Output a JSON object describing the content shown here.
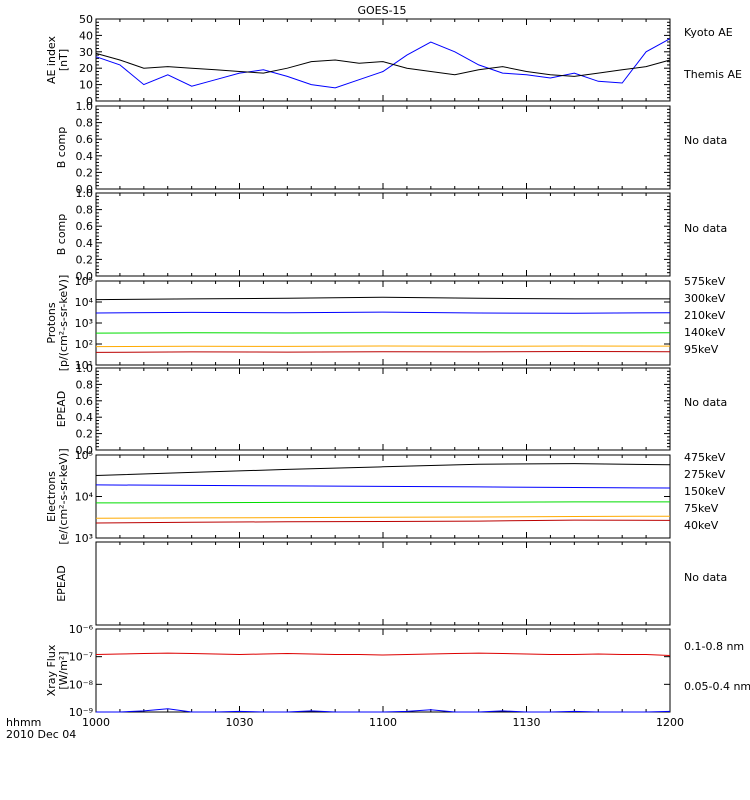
{
  "title": "GOES-15",
  "footer": {
    "units": "hhmm",
    "date": "2010 Dec 04"
  },
  "time_ticks": [
    "1000",
    "1030",
    "1100",
    "1130",
    "1200"
  ],
  "colors": {
    "black": "#000000",
    "blue": "#0000ff",
    "green": "#00dd00",
    "orange": "#ffaa00",
    "darkred": "#bb0000",
    "red": "#dd0000"
  },
  "chart_data": [
    {
      "type": "line",
      "id": "ae",
      "ylabel": [
        "AE index",
        "[nT]"
      ],
      "ylim": [
        0,
        50
      ],
      "yticks": [
        0,
        10,
        20,
        30,
        40,
        50
      ],
      "ytick_labels": [
        "0",
        "10",
        "20",
        "30",
        "40",
        "50"
      ],
      "x": [
        0,
        5,
        10,
        15,
        20,
        25,
        30,
        35,
        40,
        45,
        50,
        55,
        60,
        65,
        70,
        75,
        80,
        85,
        90,
        95,
        100,
        105,
        110,
        115,
        120
      ],
      "series": [
        {
          "name": "Kyoto AE",
          "color": "#0000ff",
          "values": [
            27,
            22,
            10,
            16,
            9,
            13,
            17,
            19,
            15,
            10,
            8,
            13,
            18,
            28,
            36,
            30,
            22,
            17,
            16,
            14,
            17,
            12,
            11,
            30,
            38
          ]
        },
        {
          "name": "Themis AE",
          "color": "#000000",
          "values": [
            29,
            25,
            20,
            21,
            20,
            19,
            18,
            17,
            20,
            24,
            25,
            23,
            24,
            20,
            18,
            16,
            19,
            21,
            18,
            16,
            15,
            17,
            19,
            21,
            25
          ]
        }
      ]
    },
    {
      "type": "empty",
      "id": "b1",
      "ylabel": [
        "B comp"
      ],
      "ylim": [
        0,
        1
      ],
      "yticks": [
        0,
        0.2,
        0.4,
        0.6,
        0.8,
        1.0
      ],
      "ytick_labels": [
        "0.0",
        "0.2",
        "0.4",
        "0.6",
        "0.8",
        "1.0"
      ],
      "note": "No data"
    },
    {
      "type": "empty",
      "id": "b2",
      "ylabel": [
        "B comp"
      ],
      "ylim": [
        0,
        1
      ],
      "yticks": [
        0,
        0.2,
        0.4,
        0.6,
        0.8,
        1.0
      ],
      "ytick_labels": [
        "0.0",
        "0.2",
        "0.4",
        "0.6",
        "0.8",
        "1.0"
      ],
      "note": "No data"
    },
    {
      "type": "line",
      "id": "protons",
      "log": true,
      "ylabel": [
        "Protons",
        "[p/(cm²-s-sr-keV)]"
      ],
      "ylim": [
        10,
        100000
      ],
      "yticks": [
        10,
        100,
        1000,
        10000,
        100000
      ],
      "ytick_labels": [
        "10¹",
        "10²",
        "10³",
        "10⁴",
        "10⁵"
      ],
      "x": [
        0,
        20,
        40,
        60,
        80,
        100,
        120
      ],
      "series": [
        {
          "name": "575keV",
          "color": "#bb0000",
          "values": [
            40,
            42,
            41,
            43,
            42,
            44,
            43
          ]
        },
        {
          "name": "300keV",
          "color": "#ffaa00",
          "values": [
            75,
            78,
            77,
            80,
            78,
            80,
            79
          ]
        },
        {
          "name": "210keV",
          "color": "#00dd00",
          "values": [
            330,
            340,
            335,
            345,
            340,
            338,
            342
          ]
        },
        {
          "name": "140keV",
          "color": "#0000ff",
          "values": [
            3000,
            3200,
            3100,
            3300,
            3000,
            2900,
            3100
          ]
        },
        {
          "name": "95keV",
          "color": "#000000",
          "values": [
            13000,
            14000,
            15000,
            17000,
            15000,
            14000,
            14000
          ]
        }
      ]
    },
    {
      "type": "empty",
      "id": "epead1",
      "ylabel": [
        "EPEAD"
      ],
      "ylim": [
        0,
        1
      ],
      "yticks": [
        0,
        0.2,
        0.4,
        0.6,
        0.8,
        1.0
      ],
      "ytick_labels": [
        "0.0",
        "0.2",
        "0.4",
        "0.6",
        "0.8",
        "1.0"
      ],
      "note": "No data"
    },
    {
      "type": "line",
      "id": "electrons",
      "log": true,
      "ylabel": [
        "Electrons",
        "[e/(cm²-s-sr-keV)]"
      ],
      "ylim": [
        1000,
        100000
      ],
      "yticks": [
        1000,
        10000,
        100000
      ],
      "ytick_labels": [
        "10³",
        "10⁴",
        "10⁵"
      ],
      "x": [
        0,
        20,
        40,
        60,
        80,
        100,
        120
      ],
      "series": [
        {
          "name": "475keV",
          "color": "#bb0000",
          "values": [
            2300,
            2400,
            2450,
            2500,
            2550,
            2700,
            2650
          ]
        },
        {
          "name": "275keV",
          "color": "#ffaa00",
          "values": [
            3000,
            3050,
            3100,
            3150,
            3200,
            3300,
            3350
          ]
        },
        {
          "name": "150keV",
          "color": "#00dd00",
          "values": [
            7000,
            7100,
            7200,
            7200,
            7300,
            7400,
            7400
          ]
        },
        {
          "name": "75keV",
          "color": "#0000ff",
          "values": [
            19000,
            18500,
            18000,
            17500,
            17000,
            16500,
            16000
          ]
        },
        {
          "name": "40keV",
          "color": "#000000",
          "values": [
            32000,
            38000,
            45000,
            52000,
            60000,
            62000,
            58000
          ]
        }
      ]
    },
    {
      "type": "empty",
      "id": "epead2",
      "ylabel": [
        "EPEAD"
      ],
      "ylim": [
        0,
        1
      ],
      "yticks": [],
      "ytick_labels": [],
      "note": "No data"
    },
    {
      "type": "line",
      "id": "xray",
      "log": true,
      "ylabel": [
        "Xray Flux",
        "[W/m²]"
      ],
      "ylim": [
        1e-09,
        1e-06
      ],
      "yticks": [
        1e-09,
        1e-08,
        1e-07,
        1e-06
      ],
      "ytick_labels": [
        "10⁻⁹",
        "10⁻⁸",
        "10⁻⁷",
        "10⁻⁶"
      ],
      "x": [
        0,
        5,
        10,
        15,
        20,
        25,
        30,
        35,
        40,
        45,
        50,
        55,
        60,
        65,
        70,
        75,
        80,
        85,
        90,
        95,
        100,
        105,
        110,
        115,
        120
      ],
      "series": [
        {
          "name": "0.1-0.8 nm",
          "color": "#dd0000",
          "values": [
            1.2e-07,
            1.25e-07,
            1.3e-07,
            1.35e-07,
            1.3e-07,
            1.25e-07,
            1.2e-07,
            1.25e-07,
            1.3e-07,
            1.25e-07,
            1.2e-07,
            1.2e-07,
            1.15e-07,
            1.2e-07,
            1.25e-07,
            1.3e-07,
            1.35e-07,
            1.3e-07,
            1.25e-07,
            1.2e-07,
            1.2e-07,
            1.25e-07,
            1.2e-07,
            1.2e-07,
            1.1e-07
          ]
        },
        {
          "name": "0.05-0.4 nm",
          "color": "#0000ff",
          "values": [
            1e-09,
            1e-09,
            1.1e-09,
            1.3e-09,
            1e-09,
            1e-09,
            1.05e-09,
            1e-09,
            1e-09,
            1.1e-09,
            1e-09,
            1e-09,
            1e-09,
            1.05e-09,
            1.2e-09,
            1e-09,
            1e-09,
            1.1e-09,
            1e-09,
            1e-09,
            1.05e-09,
            1e-09,
            1e-09,
            1e-09,
            1.05e-09
          ]
        }
      ]
    }
  ]
}
